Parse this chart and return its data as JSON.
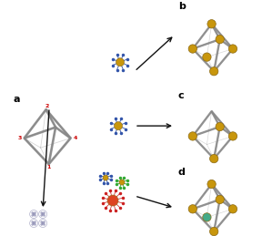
{
  "bg_color": "#ffffff",
  "label_a": "a",
  "label_b": "b",
  "label_c": "c",
  "label_d": "d",
  "oct_color": "#888888",
  "oct_color2": "#aaaaaa",
  "gold_color": "#C8960C",
  "gold_edge": "#8B6914",
  "blue_strand": "#3355AA",
  "green_strand": "#33AA33",
  "red_strand": "#CC2222",
  "red_particle": "#DD4422",
  "vertex_label_color": "#CC0000",
  "arrow_color": "#111111",
  "dna_bundle_color": "#9999BB",
  "dna_bundle_inner": "#666699"
}
